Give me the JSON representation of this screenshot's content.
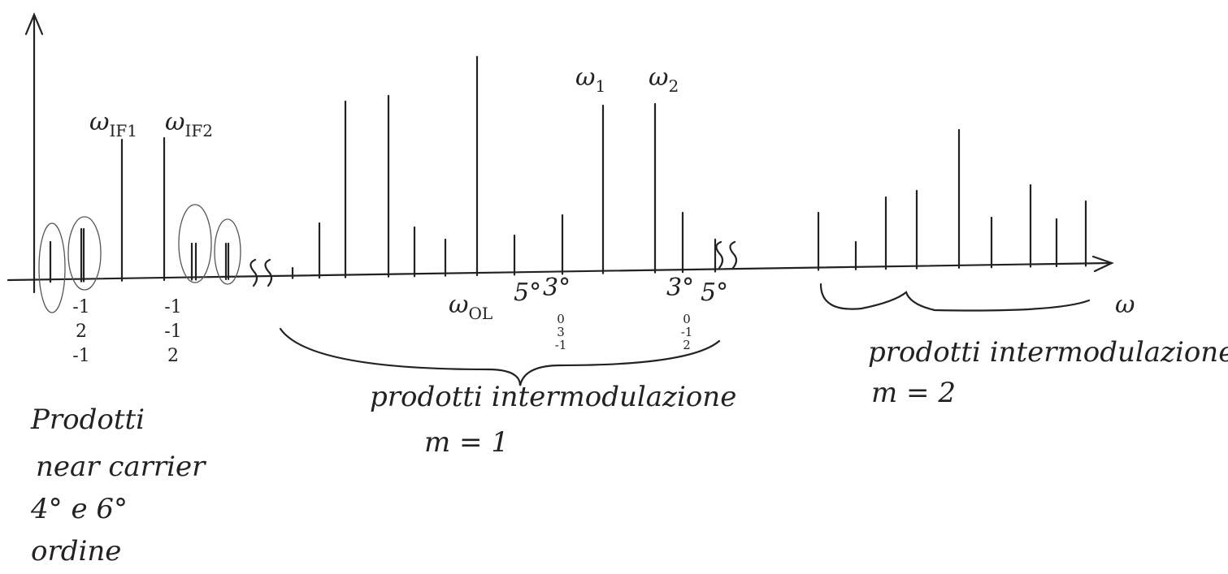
{
  "lines": {
    "if1": {
      "symbol": "ω",
      "subscript": "IF1"
    },
    "if2": {
      "symbol": "ω",
      "subscript": "IF2"
    },
    "w1": {
      "symbol": "ω",
      "subscript": "1"
    },
    "w2": {
      "symbol": "ω",
      "subscript": "2"
    },
    "ol": {
      "symbol": "ω",
      "subscript": "OL"
    }
  },
  "order_marks": [
    "5°",
    "3°",
    "3°",
    "5°"
  ],
  "axis_label": "ω",
  "coefficients": [
    [
      "-1",
      "2",
      "-1"
    ],
    [
      "-1",
      "-1",
      "2"
    ],
    [
      "0",
      "3",
      "-1"
    ],
    [
      "0",
      "-1",
      "2"
    ]
  ],
  "groups": {
    "m1": {
      "title": "prodotti intermodulazione",
      "order": "m = 1"
    },
    "m2": {
      "title": "prodotti intermodulazione",
      "order": "m = 2"
    },
    "near_carrier": [
      "Prodotti",
      "near carrier",
      "4° e 6°",
      "ordine"
    ]
  }
}
